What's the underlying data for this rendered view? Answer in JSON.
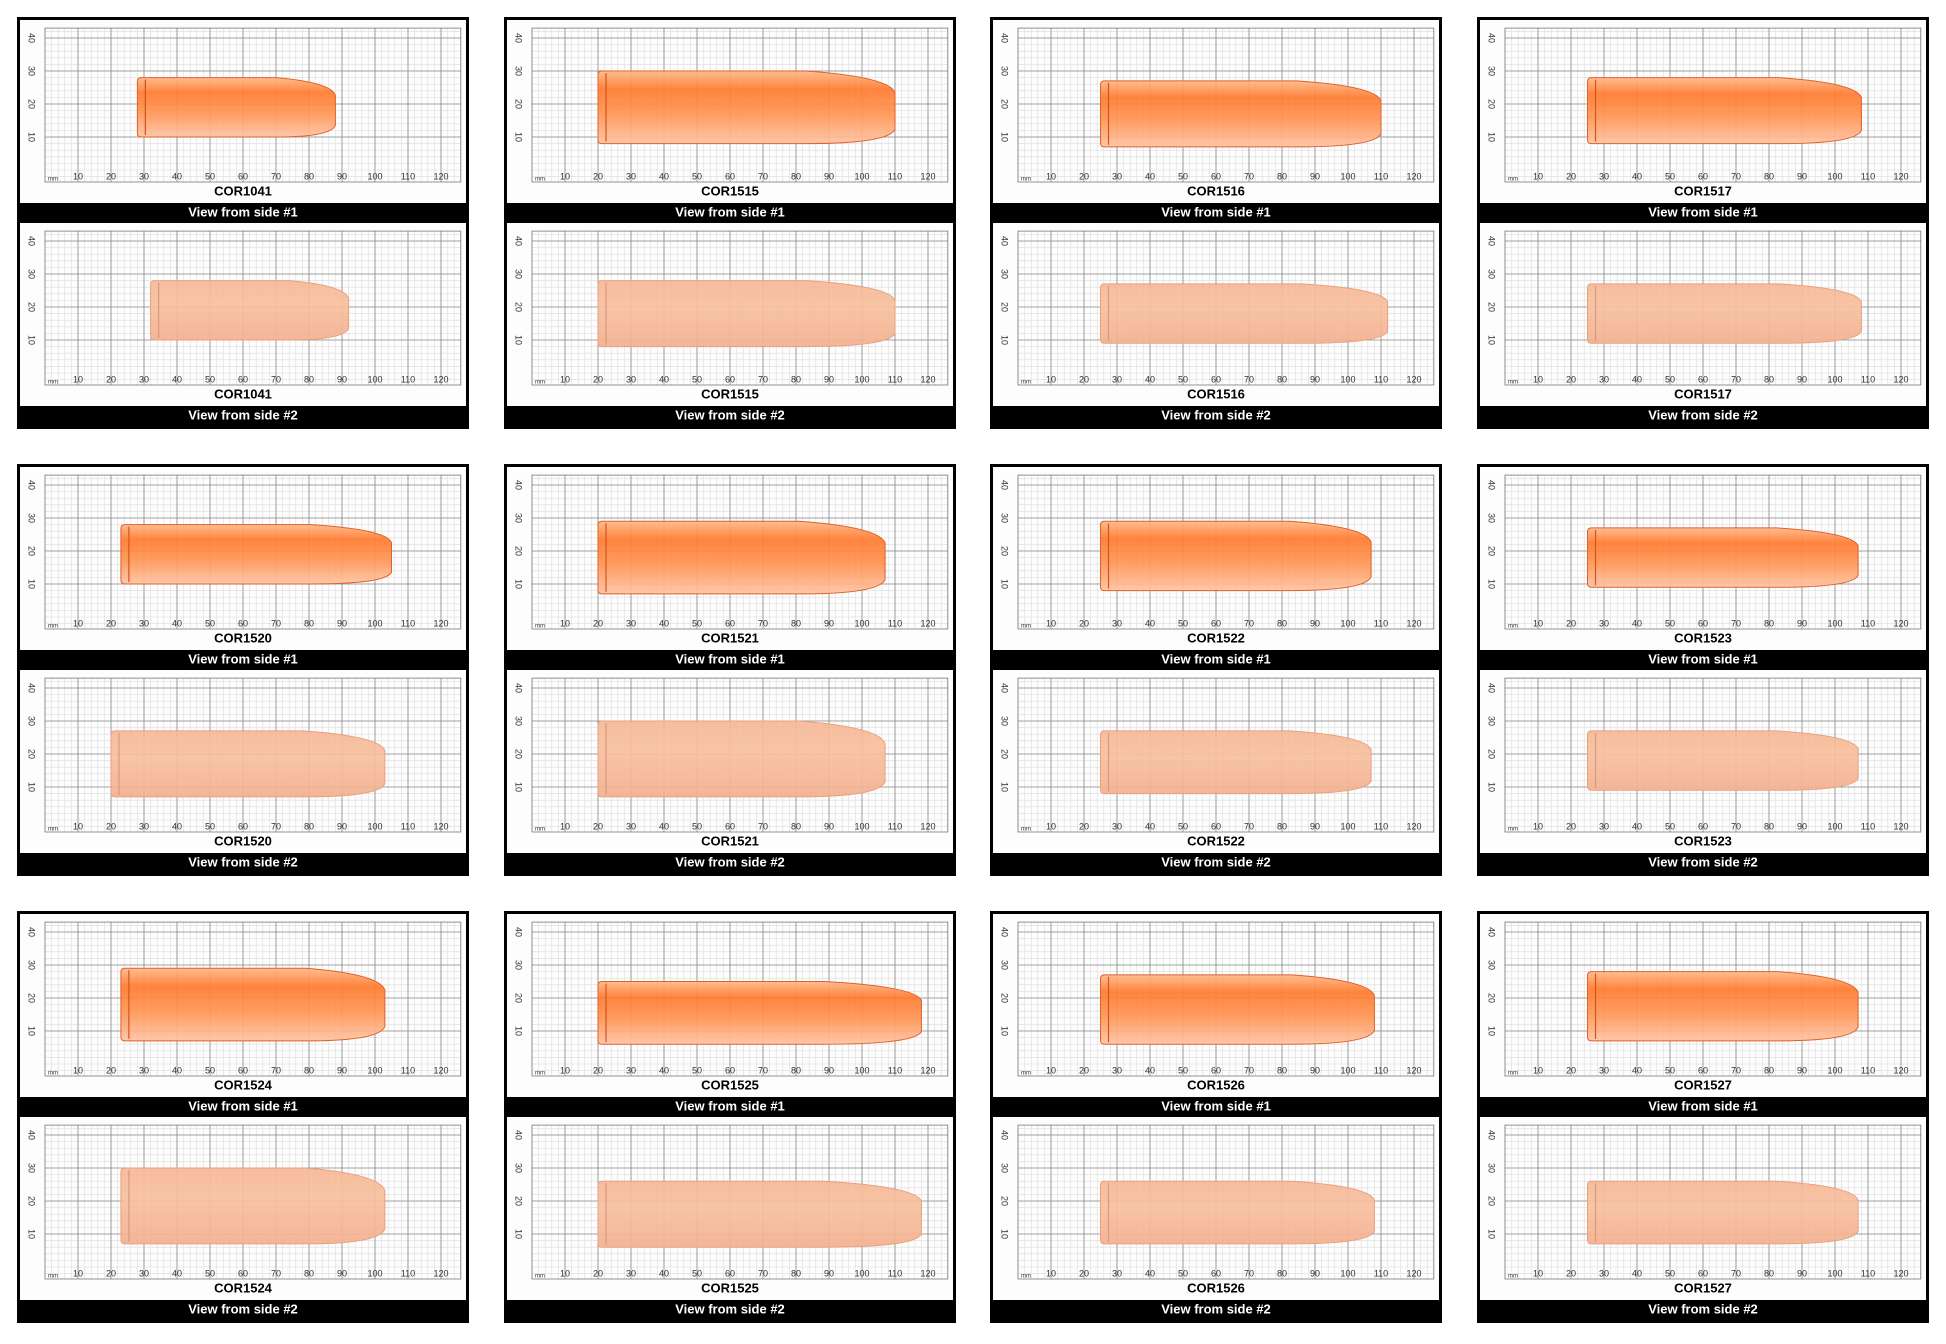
{
  "grid": {
    "unit": "mm",
    "x_ticks": [
      10,
      20,
      30,
      40,
      50,
      60,
      70,
      80,
      90,
      100,
      110,
      120
    ],
    "y_ticks": [
      10,
      20,
      30,
      40
    ]
  },
  "samples": [
    {
      "id": "COR1041",
      "views": [
        "View from side #1",
        "View from side #2"
      ]
    },
    {
      "id": "COR1515",
      "views": [
        "View from side #1",
        "View from side #2"
      ]
    },
    {
      "id": "COR1516",
      "views": [
        "View from side #1",
        "View from side #2"
      ]
    },
    {
      "id": "COR1517",
      "views": [
        "View from side #1",
        "View from side #2"
      ]
    },
    {
      "id": "COR1520",
      "views": [
        "View from side #1",
        "View from side #2"
      ]
    },
    {
      "id": "COR1521",
      "views": [
        "View from side #1",
        "View from side #2"
      ]
    },
    {
      "id": "COR1522",
      "views": [
        "View from side #1",
        "View from side #2"
      ]
    },
    {
      "id": "COR1523",
      "views": [
        "View from side #1",
        "View from side #2"
      ]
    },
    {
      "id": "COR1524",
      "views": [
        "View from side #1",
        "View from side #2"
      ]
    },
    {
      "id": "COR1525",
      "views": [
        "View from side #1",
        "View from side #2"
      ]
    },
    {
      "id": "COR1526",
      "views": [
        "View from side #1",
        "View from side #2"
      ]
    },
    {
      "id": "COR1527",
      "views": [
        "View from side #1",
        "View from side #2"
      ]
    }
  ]
}
